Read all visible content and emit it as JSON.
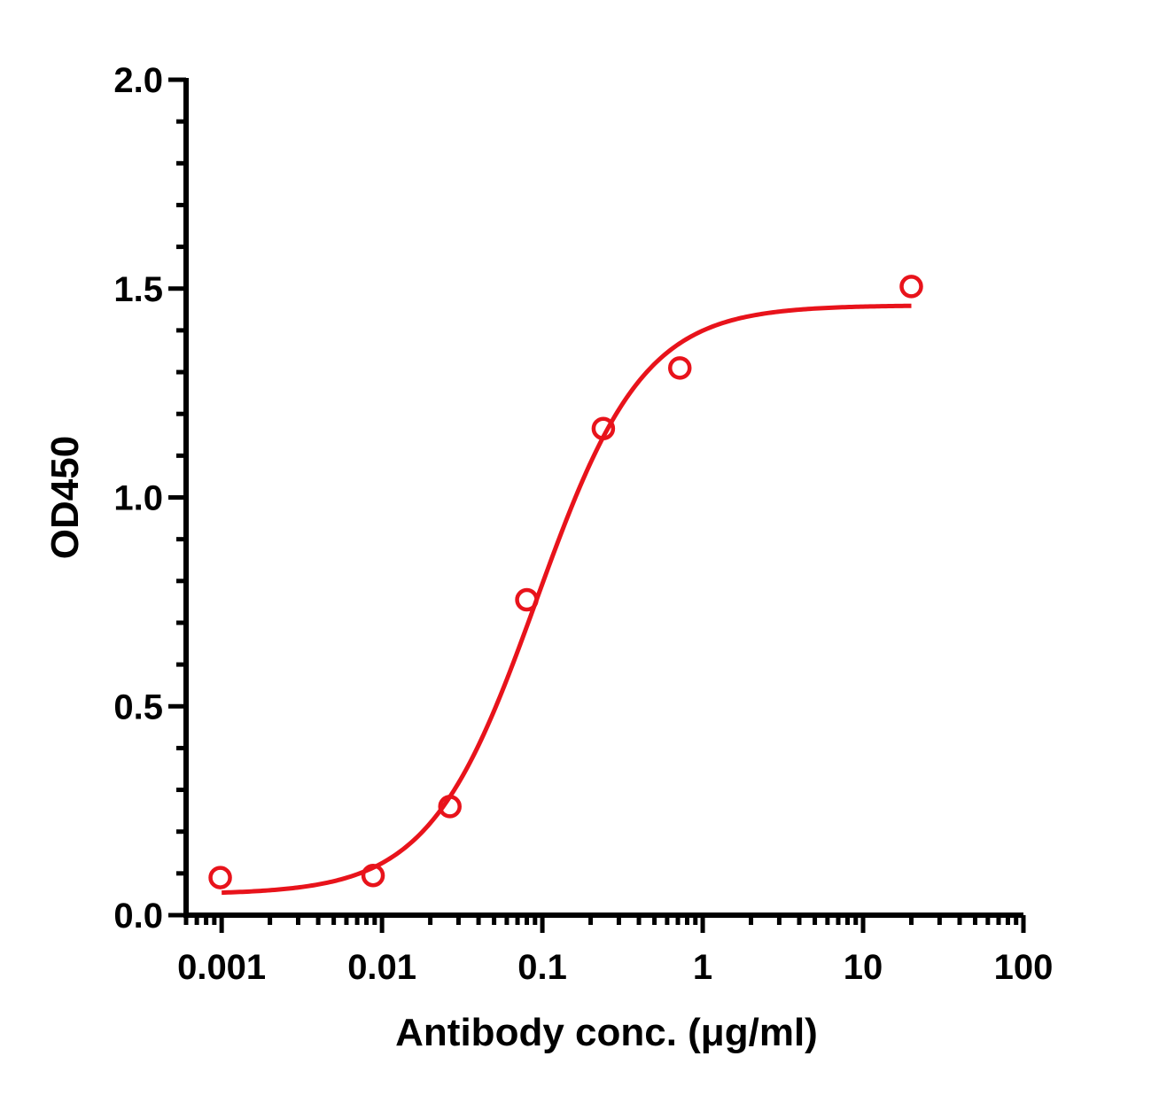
{
  "chart_data": {
    "type": "scatter",
    "title": "",
    "xlabel": "Antibody conc. (μg/ml)",
    "ylabel": "OD450",
    "x_scale": "log",
    "xlim": [
      0.0006,
      100
    ],
    "ylim": [
      0,
      2.0
    ],
    "x_ticks": [
      {
        "value": 0.001,
        "label": "0.001"
      },
      {
        "value": 0.01,
        "label": "0.01"
      },
      {
        "value": 0.1,
        "label": "0.1"
      },
      {
        "value": 1,
        "label": "1"
      },
      {
        "value": 10,
        "label": "10"
      },
      {
        "value": 100,
        "label": "100"
      }
    ],
    "y_ticks": [
      {
        "value": 0.0,
        "label": "0.0"
      },
      {
        "value": 0.5,
        "label": "0.5"
      },
      {
        "value": 1.0,
        "label": "1.0"
      },
      {
        "value": 1.5,
        "label": "1.5"
      },
      {
        "value": 2.0,
        "label": "2.0"
      }
    ],
    "grid": false,
    "series": [
      {
        "color": "#e8131b",
        "marker": "open-circle",
        "x": [
          0.00098,
          0.0088,
          0.0265,
          0.08,
          0.24,
          0.72,
          20
        ],
        "y": [
          0.09,
          0.095,
          0.26,
          0.755,
          1.165,
          1.31,
          1.505
        ],
        "fit": {
          "model": "four-parameter logistic",
          "bottom": 0.05,
          "top": 1.46,
          "ec50": 0.092,
          "hill": 1.3,
          "x_range": [
            0.001,
            20
          ]
        }
      }
    ]
  }
}
